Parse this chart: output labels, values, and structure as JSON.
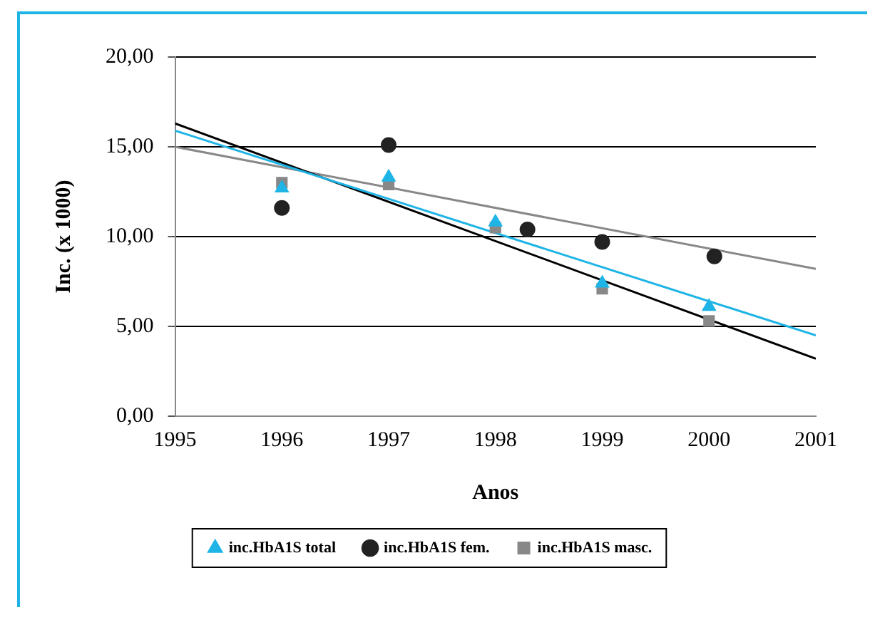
{
  "chart_data": {
    "type": "scatter",
    "xlabel": "Anos",
    "ylabel": "Inc. (x 1000)",
    "xlim": [
      1995,
      2001
    ],
    "xticks": [
      1995,
      1996,
      1997,
      1998,
      1999,
      2000,
      2001
    ],
    "ylim": [
      0,
      20
    ],
    "yticks": [
      {
        "value": 0,
        "label": "0,00"
      },
      {
        "value": 5,
        "label": "5,00"
      },
      {
        "value": 10,
        "label": "10,00"
      },
      {
        "value": 15,
        "label": "15,00"
      },
      {
        "value": 20,
        "label": "20,00"
      }
    ],
    "grid": "y",
    "legend": "bottom",
    "series": [
      {
        "name": "inc.HbA1S total",
        "color": "#1eb4e6",
        "marker": "triangle",
        "x": [
          1996,
          1997,
          1998,
          1999,
          2000
        ],
        "values": [
          12.7,
          13.3,
          10.8,
          7.4,
          6.1
        ]
      },
      {
        "name": "inc.HbA1S fem.",
        "color": "#222222",
        "marker": "circle",
        "x": [
          1996,
          1997,
          1998.3,
          1999,
          2000.05
        ],
        "values": [
          11.6,
          15.1,
          10.4,
          9.7,
          8.9
        ]
      },
      {
        "name": "inc.HbA1S masc.",
        "color": "#888888",
        "marker": "square",
        "x": [
          1996,
          1997,
          1998,
          1999,
          2000
        ],
        "values": [
          13.0,
          12.9,
          10.5,
          7.1,
          5.3
        ]
      },
      {
        "type": "line",
        "color": "#1eb4e6",
        "marker": "none",
        "x": [
          1995,
          2001
        ],
        "values": [
          15.9,
          4.5
        ]
      },
      {
        "type": "line",
        "color": "#000000",
        "marker": "none",
        "x": [
          1995,
          2001
        ],
        "values": [
          16.3,
          3.2
        ]
      },
      {
        "type": "line",
        "color": "#888888",
        "marker": "none",
        "x": [
          1995,
          2001
        ],
        "values": [
          15.0,
          8.2
        ]
      }
    ]
  }
}
